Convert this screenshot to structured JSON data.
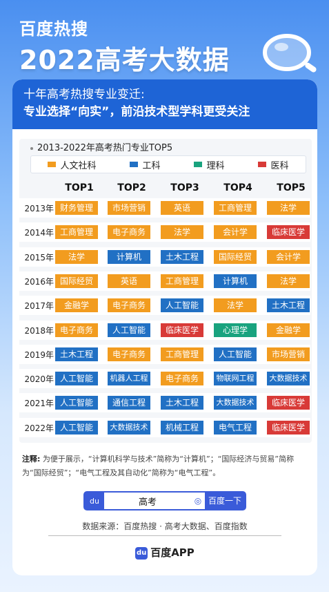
{
  "brand": "百度热搜",
  "title": "2022高考大数据",
  "header": {
    "line1": "十年高考热搜专业变迁:",
    "line2": "专业选择“向实”，前沿技术型学科更受关注"
  },
  "chart_title": "2013-2022年高考热门专业TOP5",
  "legend": [
    {
      "label": "人文社科",
      "color": "#f29c1f"
    },
    {
      "label": "工科",
      "color": "#2170c4"
    },
    {
      "label": "理科",
      "color": "#19a37e"
    },
    {
      "label": "医科",
      "color": "#d83a37"
    }
  ],
  "columns": [
    "TOP1",
    "TOP2",
    "TOP3",
    "TOP4",
    "TOP5"
  ],
  "chart_data": {
    "type": "table",
    "rows": [
      {
        "year": "2013年",
        "items": [
          [
            "财务管理",
            "h"
          ],
          [
            "市场营销",
            "h"
          ],
          [
            "英语",
            "h"
          ],
          [
            "工商管理",
            "h"
          ],
          [
            "法学",
            "h"
          ]
        ]
      },
      {
        "year": "2014年",
        "items": [
          [
            "工商管理",
            "h"
          ],
          [
            "电子商务",
            "h"
          ],
          [
            "法学",
            "h"
          ],
          [
            "会计学",
            "h"
          ],
          [
            "临床医学",
            "m"
          ]
        ]
      },
      {
        "year": "2015年",
        "items": [
          [
            "法学",
            "h"
          ],
          [
            "计算机",
            "e"
          ],
          [
            "土木工程",
            "e"
          ],
          [
            "国际经贸",
            "h"
          ],
          [
            "会计学",
            "h"
          ]
        ]
      },
      {
        "year": "2016年",
        "items": [
          [
            "国际经贸",
            "h"
          ],
          [
            "英语",
            "h"
          ],
          [
            "工商管理",
            "h"
          ],
          [
            "计算机",
            "e"
          ],
          [
            "法学",
            "h"
          ]
        ]
      },
      {
        "year": "2017年",
        "items": [
          [
            "金融学",
            "h"
          ],
          [
            "电子商务",
            "h"
          ],
          [
            "人工智能",
            "e"
          ],
          [
            "法学",
            "h"
          ],
          [
            "土木工程",
            "e"
          ]
        ]
      },
      {
        "year": "2018年",
        "items": [
          [
            "电子商务",
            "h"
          ],
          [
            "人工智能",
            "e"
          ],
          [
            "临床医学",
            "m"
          ],
          [
            "心理学",
            "s"
          ],
          [
            "金融学",
            "h"
          ]
        ]
      },
      {
        "year": "2019年",
        "items": [
          [
            "土木工程",
            "e"
          ],
          [
            "电子商务",
            "h"
          ],
          [
            "工商管理",
            "h"
          ],
          [
            "人工智能",
            "e"
          ],
          [
            "市场营销",
            "h"
          ]
        ]
      },
      {
        "year": "2020年",
        "items": [
          [
            "人工智能",
            "e"
          ],
          [
            "机器人工程",
            "e"
          ],
          [
            "电子商务",
            "h"
          ],
          [
            "物联网工程",
            "e"
          ],
          [
            "大数据技术",
            "e"
          ]
        ]
      },
      {
        "year": "2021年",
        "items": [
          [
            "人工智能",
            "e"
          ],
          [
            "通信工程",
            "e"
          ],
          [
            "土木工程",
            "e"
          ],
          [
            "大数据技术",
            "e"
          ],
          [
            "临床医学",
            "m"
          ]
        ]
      },
      {
        "year": "2022年",
        "items": [
          [
            "人工智能",
            "e"
          ],
          [
            "大数据技术",
            "e"
          ],
          [
            "机械工程",
            "e"
          ],
          [
            "电气工程",
            "e"
          ],
          [
            "临床医学",
            "m"
          ]
        ]
      }
    ]
  },
  "category_colors": {
    "h": "#f29c1f",
    "e": "#2170c4",
    "s": "#19a37e",
    "m": "#d83a37"
  },
  "note": {
    "label": "注释:",
    "text": "为便于展示，“计算机科学与技术”简称为“计算机”；“国际经济与贸易”简称为“国际经贸”；“电气工程及其自动化”简称为“电气工程”。"
  },
  "search": {
    "query": "高考",
    "button": "百度一下"
  },
  "source": "数据来源：百度热搜 · 高考大数据、百度指数",
  "app": "百度APP"
}
